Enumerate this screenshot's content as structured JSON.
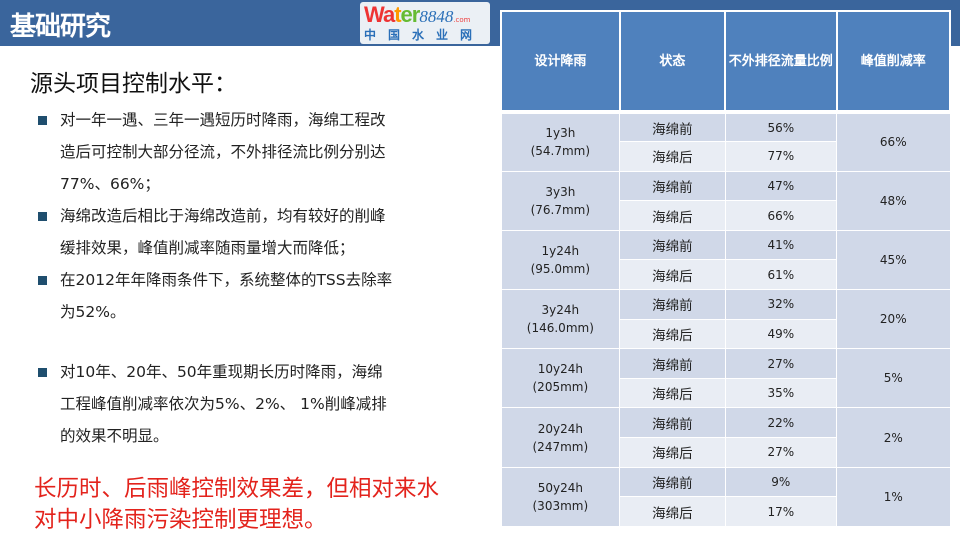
{
  "header": {
    "title": "基础研究"
  },
  "subtitle": "源头项目控制水平：",
  "bullets": [
    {
      "lines": [
        "对一年一遇、三年一遇短历时降雨，海绵工程改",
        "造后可控制大部分径流，不外排径流比例分别达",
        "77%、66%；"
      ]
    },
    {
      "lines": [
        "海绵改造后相比于海绵改造前，均有较好的削峰",
        "缓排效果，峰值削减率随雨量增大而降低；"
      ]
    },
    {
      "lines": [
        "在2012年年降雨条件下，系统整体的TSS去除率",
        "为52%。"
      ]
    },
    {
      "lines": [
        "对10年、20年、50年重现期长历时降雨，海绵",
        "工程峰值削减率依次为5%、2%、 1%削峰减排",
        "的效果不明显。"
      ]
    }
  ],
  "conclusion": [
    "长历时、后雨峰控制效果差，但相对来水",
    "对中小降雨污染控制更理想。"
  ],
  "table": {
    "headers": [
      "设计降雨",
      "状态",
      "不外排径流量比例",
      "峰值削减率"
    ],
    "groups": [
      {
        "rain": "1y3h",
        "depth": "(54.7mm)",
        "before_label": "海绵前",
        "before": "56%",
        "after_label": "海绵后",
        "after": "77%",
        "peak": "66%"
      },
      {
        "rain": "3y3h",
        "depth": "(76.7mm)",
        "before_label": "海绵前",
        "before": "47%",
        "after_label": "海绵后",
        "after": "66%",
        "peak": "48%"
      },
      {
        "rain": "1y24h",
        "depth": "(95.0mm)",
        "before_label": "海绵前",
        "before": "41%",
        "after_label": "海绵后",
        "after": "61%",
        "peak": "45%"
      },
      {
        "rain": "3y24h",
        "depth": "(146.0mm)",
        "before_label": "海绵前",
        "before": "32%",
        "after_label": "海绵后",
        "after": "49%",
        "peak": "20%"
      },
      {
        "rain": "10y24h",
        "depth": "(205mm)",
        "before_label": "海绵前",
        "before": "27%",
        "after_label": "海绵后",
        "after": "35%",
        "peak": "5%"
      },
      {
        "rain": "20y24h",
        "depth": "(247mm)",
        "before_label": "海绵前",
        "before": "22%",
        "after_label": "海绵后",
        "after": "27%",
        "peak": "2%"
      },
      {
        "rain": "50y24h",
        "depth": "(303mm)",
        "before_label": "海绵前",
        "before": "9%",
        "after_label": "海绵后",
        "after": "17%",
        "peak": "1%"
      }
    ]
  },
  "watermark": {
    "brand": "Water8848",
    "suffix": ".com",
    "cn": "中国水业网"
  }
}
